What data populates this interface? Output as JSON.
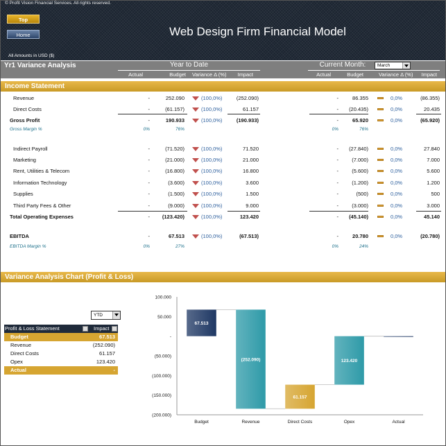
{
  "header": {
    "copyright": "© Profit Vision Financial Services. All rights reserved.",
    "top_button": "Top",
    "home_button": "Home",
    "title": "Web Design Firm Financial Model",
    "amounts_note": "All Amounts in  USD ($)"
  },
  "variance": {
    "title": "Yr1 Variance Analysis",
    "ytd_label": "Year to Date",
    "month_label": "Current Month:",
    "month_value": "March",
    "cols": [
      "Actual",
      "Budget",
      "Variance Δ  (%)",
      "Impact"
    ]
  },
  "income_statement": {
    "title": "Income Statement",
    "rows": [
      {
        "label": "Revenue",
        "style": "normal",
        "ytd": [
          "-",
          "252.090",
          "(100,0%)",
          "(252.090)"
        ],
        "ytd_icon": "down",
        "m": [
          "-",
          "86.355",
          "0,0%",
          "(86.355)"
        ],
        "m_icon": "flat"
      },
      {
        "label": "Direct Costs",
        "style": "normal",
        "ytd": [
          "-",
          "(61.157)",
          "(100,0%)",
          "61.157"
        ],
        "ytd_icon": "down",
        "m": [
          "-",
          "(20.435)",
          "0,0%",
          "20.435"
        ],
        "m_icon": "flat"
      },
      {
        "label": "Gross Profit",
        "style": "bold",
        "ytd": [
          "-",
          "190.933",
          "(100,0%)",
          "(190.933)"
        ],
        "ytd_icon": "down",
        "m": [
          "-",
          "65.920",
          "0,0%",
          "(65.920)"
        ],
        "m_icon": "flat"
      },
      {
        "label": "Gross Margin %",
        "style": "margin",
        "ytd": [
          "0%",
          "76%",
          "",
          ""
        ],
        "ytd_icon": "",
        "m": [
          "0%",
          "76%",
          "",
          ""
        ],
        "m_icon": ""
      },
      {
        "label": "Indirect Payroll",
        "style": "normal",
        "ytd": [
          "-",
          "(71.520)",
          "(100,0%)",
          "71.520"
        ],
        "ytd_icon": "down",
        "m": [
          "-",
          "(27.840)",
          "0,0%",
          "27.840"
        ],
        "m_icon": "flat"
      },
      {
        "label": "Marketing",
        "style": "normal",
        "ytd": [
          "-",
          "(21.000)",
          "(100,0%)",
          "21.000"
        ],
        "ytd_icon": "down",
        "m": [
          "-",
          "(7.000)",
          "0,0%",
          "7.000"
        ],
        "m_icon": "flat"
      },
      {
        "label": "Rent, Utilities & Telecom",
        "style": "normal",
        "ytd": [
          "-",
          "(16.800)",
          "(100,0%)",
          "16.800"
        ],
        "ytd_icon": "down",
        "m": [
          "-",
          "(5.600)",
          "0,0%",
          "5.600"
        ],
        "m_icon": "flat"
      },
      {
        "label": "Information Technology",
        "style": "normal",
        "ytd": [
          "-",
          "(3.600)",
          "(100,0%)",
          "3.600"
        ],
        "ytd_icon": "down",
        "m": [
          "-",
          "(1.200)",
          "0,0%",
          "1.200"
        ],
        "m_icon": "flat"
      },
      {
        "label": "Supplies",
        "style": "normal",
        "ytd": [
          "-",
          "(1.500)",
          "(100,0%)",
          "1.500"
        ],
        "ytd_icon": "down",
        "m": [
          "-",
          "(500)",
          "0,0%",
          "500"
        ],
        "m_icon": "flat"
      },
      {
        "label": "Third Party Fees & Other",
        "style": "normal",
        "ytd": [
          "-",
          "(9.000)",
          "(100,0%)",
          "9.000"
        ],
        "ytd_icon": "down",
        "m": [
          "-",
          "(3.000)",
          "0,0%",
          "3.000"
        ],
        "m_icon": "flat"
      },
      {
        "label": "Total Operating Expenses",
        "style": "bold",
        "ytd": [
          "-",
          "(123.420)",
          "(100,0%)",
          "123.420"
        ],
        "ytd_icon": "down",
        "m": [
          "-",
          "(45.140)",
          "0,0%",
          "45.140"
        ],
        "m_icon": "flat"
      },
      {
        "label": "EBITDA",
        "style": "bold",
        "ytd": [
          "-",
          "67.513",
          "(100,0%)",
          "(67.513)"
        ],
        "ytd_icon": "down",
        "m": [
          "-",
          "20.780",
          "0,0%",
          "(20.780)"
        ],
        "m_icon": "flat"
      },
      {
        "label": "EBITDA Margin %",
        "style": "margin",
        "ytd": [
          "0%",
          "27%",
          "",
          ""
        ],
        "ytd_icon": "",
        "m": [
          "0%",
          "24%",
          "",
          ""
        ],
        "m_icon": ""
      }
    ]
  },
  "chart_section": {
    "title": "Variance Analysis Chart (Profit & Loss)",
    "period_select": "YTD",
    "table_header": [
      "Profit & Loss Statement",
      "Impact"
    ],
    "table_rows": [
      {
        "label": "Budget",
        "value": "67.513",
        "highlight": true
      },
      {
        "label": "Revenue",
        "value": "(252.090)",
        "highlight": false
      },
      {
        "label": "Direct Costs",
        "value": "61.157",
        "highlight": false
      },
      {
        "label": "Opex",
        "value": "123.420",
        "highlight": false
      },
      {
        "label": "Actual",
        "value": "-",
        "highlight": true
      }
    ]
  },
  "colors": {
    "gold": "#d6a531",
    "navy": "#1f3864",
    "teal": "#2e9aa8",
    "red": "#c0504d"
  },
  "chart_data": {
    "type": "bar",
    "subtype": "waterfall",
    "categories": [
      "Budget",
      "Revenue",
      "Direct Costs",
      "Opex",
      "Actual"
    ],
    "values": [
      67513,
      -252090,
      61157,
      123420,
      0
    ],
    "data_labels": [
      "67.513",
      "(252.090)",
      "61.157",
      "123.420",
      ""
    ],
    "tick_labels": [
      "100.000",
      "50.000",
      "-",
      "(50.000)",
      "(100.000)",
      "(150.000)",
      "(200.000)"
    ],
    "ylim": [
      -200000,
      100000
    ],
    "grid": false,
    "legend": "none"
  }
}
